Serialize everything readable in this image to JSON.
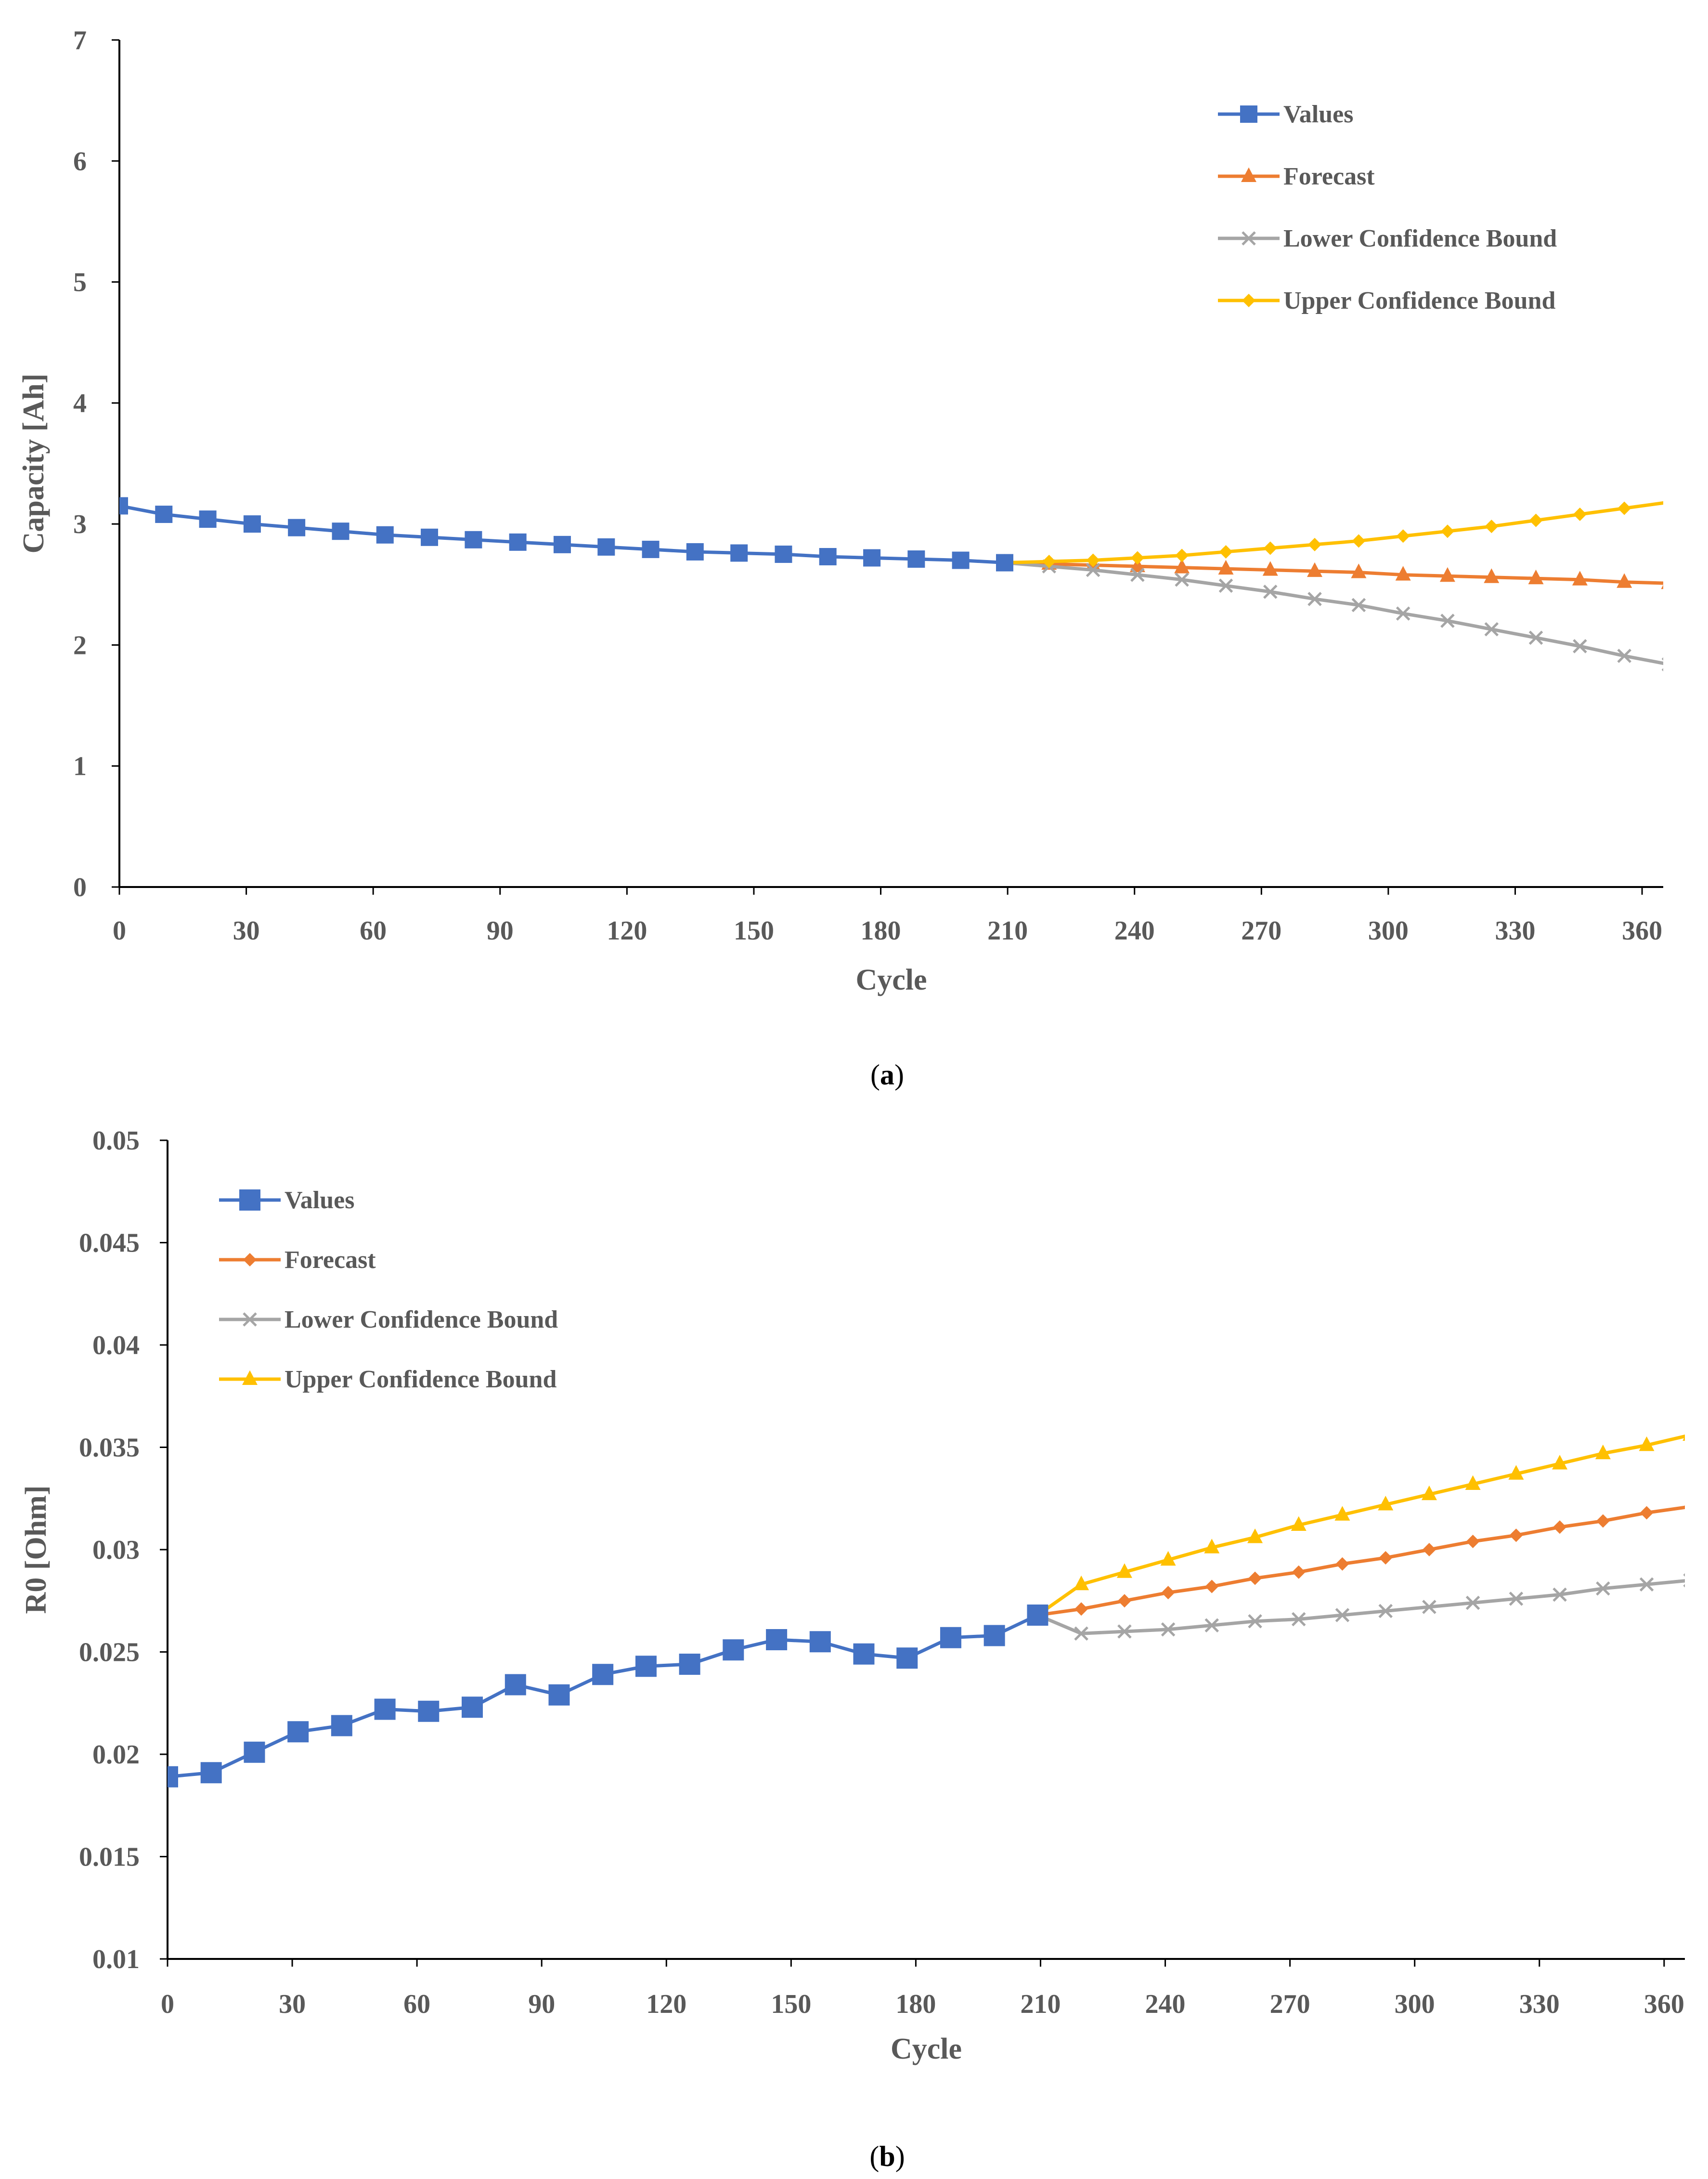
{
  "colors": {
    "values": "#4472C4",
    "forecast": "#ED7D31",
    "lower": "#A5A5A5",
    "upper": "#FFC000",
    "axis": "#000000",
    "text": "#595959"
  },
  "chart_data": [
    {
      "id": "a",
      "type": "line",
      "caption_label": "a",
      "xlabel": "Cycle",
      "ylabel": "Capacity [Ah]",
      "xlim": [
        0,
        365
      ],
      "ylim": [
        0,
        7
      ],
      "x_ticks": [
        0,
        30,
        60,
        90,
        120,
        150,
        180,
        210,
        240,
        270,
        300,
        330,
        360
      ],
      "y_ticks": [
        0,
        1,
        2,
        3,
        4,
        5,
        6,
        7
      ],
      "y_tick_labels": [
        "0",
        "1",
        "2",
        "3",
        "4",
        "5",
        "6",
        "7"
      ],
      "legend_position": "top-right",
      "series": [
        {
          "name": "Values",
          "color_key": "values",
          "marker": "square",
          "x": [
            0,
            10.5,
            20.9,
            31.4,
            41.9,
            52.3,
            62.8,
            73.3,
            83.7,
            94.2,
            104.7,
            115.1,
            125.6,
            136.1,
            146.5,
            157,
            167.5,
            177.9,
            188.4,
            198.9,
            209.3
          ],
          "y": [
            3.15,
            3.08,
            3.04,
            3.0,
            2.97,
            2.94,
            2.91,
            2.89,
            2.87,
            2.85,
            2.83,
            2.81,
            2.79,
            2.77,
            2.76,
            2.75,
            2.73,
            2.72,
            2.71,
            2.7,
            2.68
          ]
        },
        {
          "name": "Forecast",
          "color_key": "forecast",
          "marker": "triangle",
          "x": [
            209.3,
            219.8,
            230.2,
            240.7,
            251.2,
            261.6,
            272.1,
            282.6,
            293,
            303.5,
            314,
            324.4,
            334.9,
            345.3,
            355.8,
            366.3
          ],
          "y": [
            2.68,
            2.67,
            2.66,
            2.65,
            2.64,
            2.63,
            2.62,
            2.61,
            2.6,
            2.58,
            2.57,
            2.56,
            2.55,
            2.54,
            2.52,
            2.51
          ]
        },
        {
          "name": "Lower Confidence Bound",
          "color_key": "lower",
          "marker": "x",
          "x": [
            209.3,
            219.8,
            230.2,
            240.7,
            251.2,
            261.6,
            272.1,
            282.6,
            293,
            303.5,
            314,
            324.4,
            334.9,
            345.3,
            355.8,
            366.3
          ],
          "y": [
            2.68,
            2.65,
            2.62,
            2.58,
            2.54,
            2.49,
            2.44,
            2.38,
            2.33,
            2.26,
            2.2,
            2.13,
            2.06,
            1.99,
            1.91,
            1.84
          ]
        },
        {
          "name": "Upper Confidence Bound",
          "color_key": "upper",
          "marker": "diamond",
          "x": [
            209.3,
            219.8,
            230.2,
            240.7,
            251.2,
            261.6,
            272.1,
            282.6,
            293,
            303.5,
            314,
            324.4,
            334.9,
            345.3,
            355.8,
            366.3
          ],
          "y": [
            2.68,
            2.69,
            2.7,
            2.72,
            2.74,
            2.77,
            2.8,
            2.83,
            2.86,
            2.9,
            2.94,
            2.98,
            3.03,
            3.08,
            3.13,
            3.18
          ]
        }
      ]
    },
    {
      "id": "b",
      "type": "line",
      "caption_label": "b",
      "xlabel": "Cycle",
      "ylabel": "R0 [Ohm]",
      "xlim": [
        0,
        365
      ],
      "ylim": [
        0.01,
        0.05
      ],
      "x_ticks": [
        0,
        30,
        60,
        90,
        120,
        150,
        180,
        210,
        240,
        270,
        300,
        330,
        360
      ],
      "y_ticks": [
        0.01,
        0.015,
        0.02,
        0.025,
        0.03,
        0.035,
        0.04,
        0.045,
        0.05
      ],
      "y_tick_labels": [
        "0.01",
        "0.015",
        "0.02",
        "0.025",
        "0.03",
        "0.035",
        "0.04",
        "0.045",
        "0.05"
      ],
      "legend_position": "top-left",
      "series": [
        {
          "name": "Values",
          "color_key": "values",
          "marker": "square",
          "x": [
            0,
            10.5,
            20.9,
            31.4,
            41.9,
            52.3,
            62.8,
            73.3,
            83.7,
            94.2,
            104.7,
            115.1,
            125.6,
            136.1,
            146.5,
            157,
            167.5,
            177.9,
            188.4,
            198.9,
            209.3
          ],
          "y": [
            0.0189,
            0.0191,
            0.0201,
            0.0211,
            0.0214,
            0.0222,
            0.0221,
            0.0223,
            0.0234,
            0.0229,
            0.0239,
            0.0243,
            0.0244,
            0.0251,
            0.0256,
            0.0255,
            0.0249,
            0.0247,
            0.0257,
            0.0258,
            0.0268
          ]
        },
        {
          "name": "Forecast",
          "color_key": "forecast",
          "marker": "diamond",
          "x": [
            209.3,
            219.8,
            230.2,
            240.7,
            251.2,
            261.6,
            272.1,
            282.6,
            293,
            303.5,
            314,
            324.4,
            334.9,
            345.3,
            355.8,
            366.3
          ],
          "y": [
            0.0268,
            0.0271,
            0.0275,
            0.0279,
            0.0282,
            0.0286,
            0.0289,
            0.0293,
            0.0296,
            0.03,
            0.0304,
            0.0307,
            0.0311,
            0.0314,
            0.0318,
            0.0321
          ]
        },
        {
          "name": "Lower Confidence Bound",
          "color_key": "lower",
          "marker": "x",
          "x": [
            209.3,
            219.8,
            230.2,
            240.7,
            251.2,
            261.6,
            272.1,
            282.6,
            293,
            303.5,
            314,
            324.4,
            334.9,
            345.3,
            355.8,
            366.3
          ],
          "y": [
            0.0268,
            0.0259,
            0.026,
            0.0261,
            0.0263,
            0.0265,
            0.0266,
            0.0268,
            0.027,
            0.0272,
            0.0274,
            0.0276,
            0.0278,
            0.0281,
            0.0283,
            0.0285
          ]
        },
        {
          "name": "Upper Confidence Bound",
          "color_key": "upper",
          "marker": "triangle",
          "x": [
            209.3,
            219.8,
            230.2,
            240.7,
            251.2,
            261.6,
            272.1,
            282.6,
            293,
            303.5,
            314,
            324.4,
            334.9,
            345.3,
            355.8,
            366.3
          ],
          "y": [
            0.0268,
            0.0283,
            0.0289,
            0.0295,
            0.0301,
            0.0306,
            0.0312,
            0.0317,
            0.0322,
            0.0327,
            0.0332,
            0.0337,
            0.0342,
            0.0347,
            0.0351,
            0.0356
          ]
        }
      ]
    }
  ]
}
